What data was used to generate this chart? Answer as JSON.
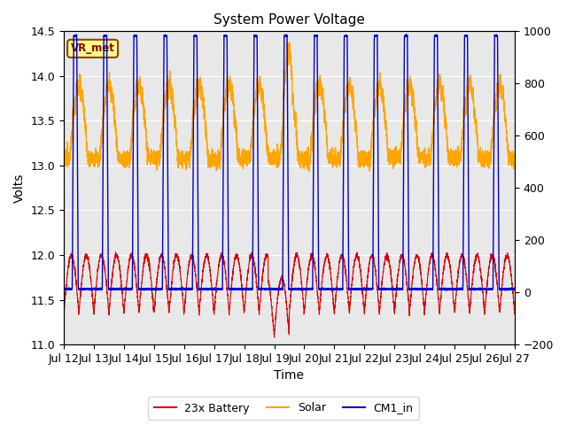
{
  "title": "System Power Voltage",
  "xlabel": "Time",
  "ylabel": "Volts",
  "ylim_left": [
    11.0,
    14.5
  ],
  "ylim_right": [
    -200,
    1000
  ],
  "yticks_left": [
    11.0,
    11.5,
    12.0,
    12.5,
    13.0,
    13.5,
    14.0,
    14.5
  ],
  "yticks_right": [
    -200,
    0,
    200,
    400,
    600,
    800,
    1000
  ],
  "xticklabels": [
    "Jul 12",
    "Jul 13",
    "Jul 14",
    "Jul 15",
    "Jul 16",
    "Jul 17",
    "Jul 18",
    "Jul 19",
    "Jul 20",
    "Jul 21",
    "Jul 22",
    "Jul 23",
    "Jul 24",
    "Jul 25",
    "Jul 26",
    "Jul 27"
  ],
  "legend_labels": [
    "23x Battery",
    "Solar",
    "CM1_in"
  ],
  "vr_met_label": "VR_met",
  "plot_bg_color": "#e8e8e8",
  "battery_color": "#dd0000",
  "solar_color": "#ffa500",
  "cm1_color": "#0000cc",
  "n_days": 15,
  "n_points_per_day": 288
}
